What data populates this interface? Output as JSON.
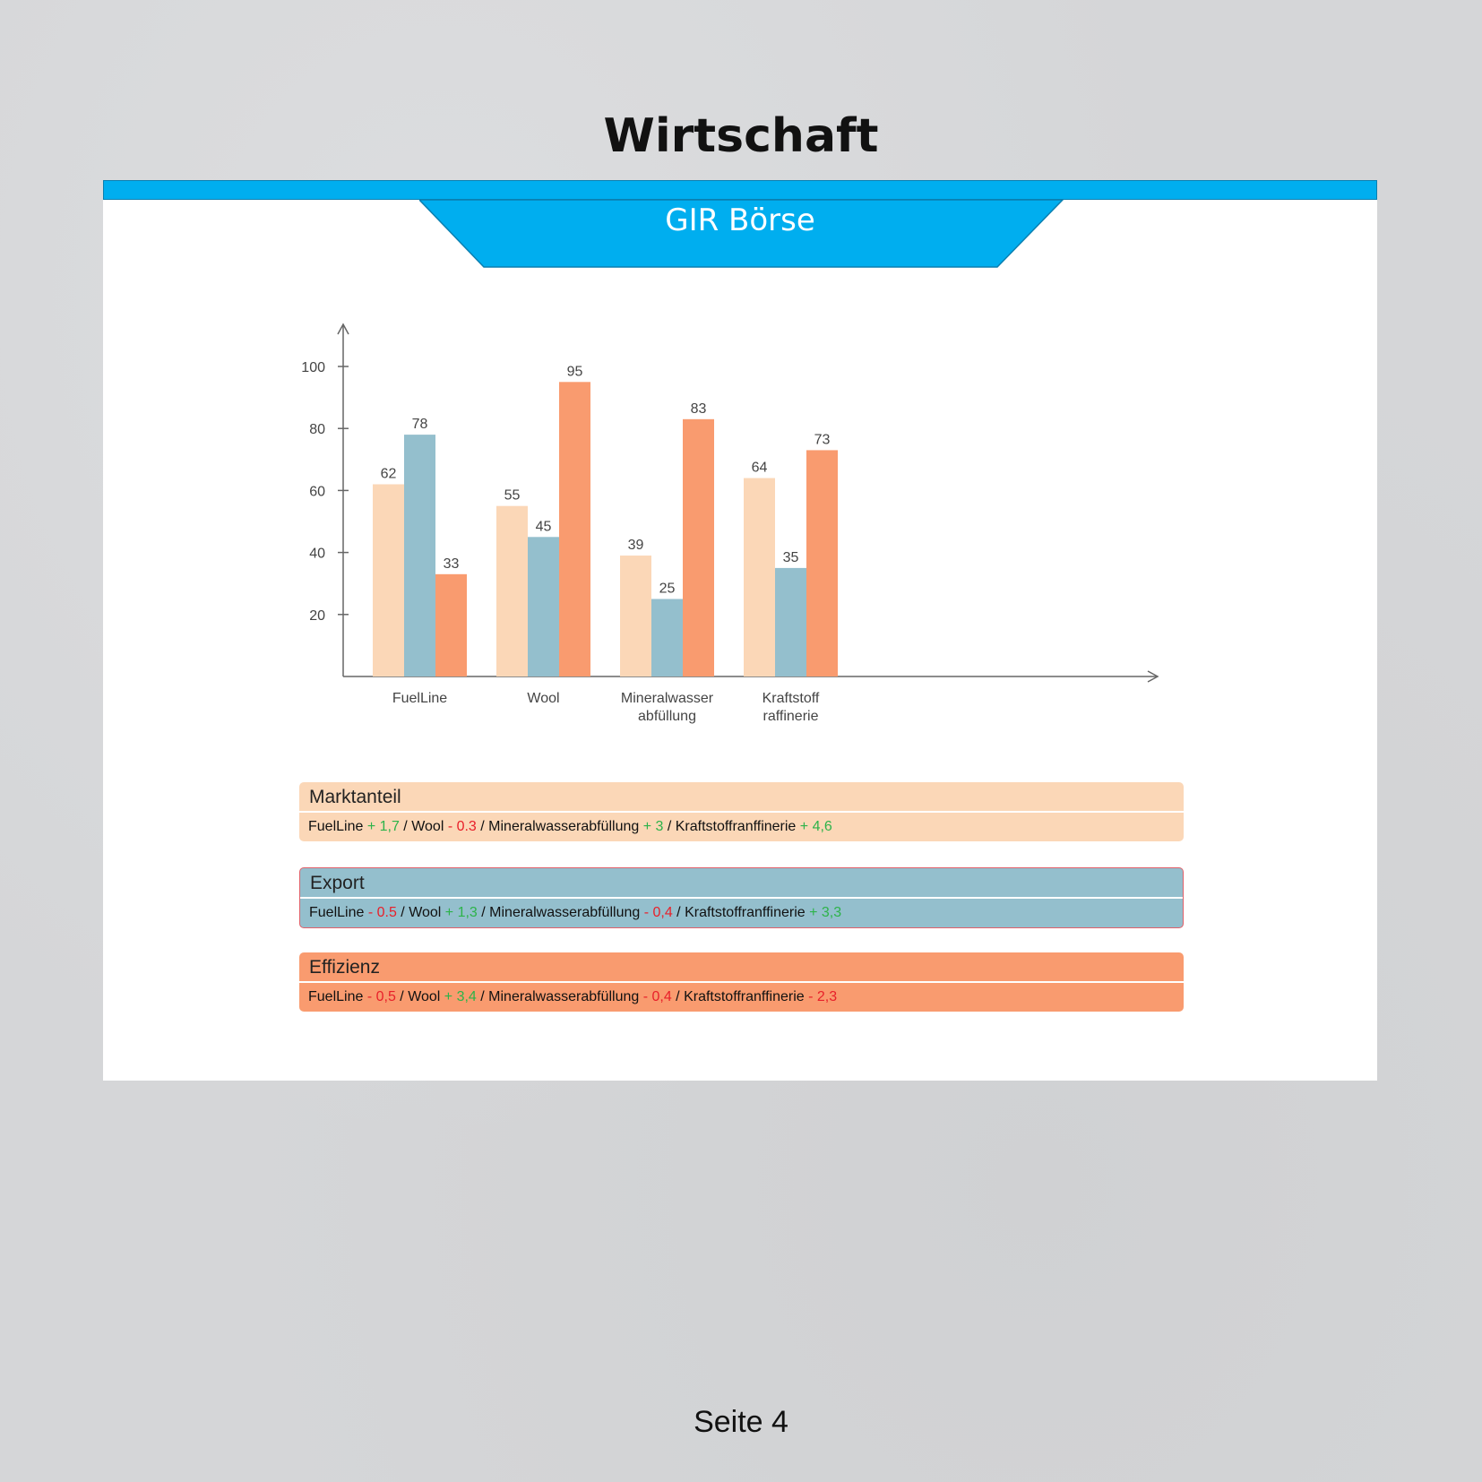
{
  "title": "Wirtschaft",
  "banner": "GIR Börse",
  "colors": {
    "accent": "#00aeef",
    "marktanteil": "#fbd7b7",
    "export": "#94bfcd",
    "effizienz": "#f99b6f",
    "positive": "#2db34a",
    "negative": "#e8202a"
  },
  "chart_data": {
    "type": "bar",
    "categories": [
      "FuelLine",
      "Wool",
      "Mineralwasser abfüllung",
      "Kraftstoff raffinerie"
    ],
    "category_lines": [
      [
        "FuelLine"
      ],
      [
        "Wool"
      ],
      [
        "Mineralwasser",
        "abfüllung"
      ],
      [
        "Kraftstoff",
        "raffinerie"
      ]
    ],
    "series": [
      {
        "name": "Marktanteil",
        "color": "#fbd7b7",
        "values": [
          62,
          55,
          39,
          64
        ]
      },
      {
        "name": "Export",
        "color": "#94bfcd",
        "values": [
          78,
          45,
          25,
          35
        ]
      },
      {
        "name": "Effizienz",
        "color": "#f99b6f",
        "values": [
          33,
          95,
          83,
          73
        ]
      }
    ],
    "yticks": [
      20,
      40,
      60,
      80,
      100
    ],
    "ylim": [
      0,
      110
    ],
    "grid": false
  },
  "boxes": [
    {
      "title": "Marktanteil",
      "color": "#fbd7b7",
      "items": [
        {
          "name": "FuelLine",
          "change": "+ 1,7",
          "dir": "pos"
        },
        {
          "name": "Wool",
          "change": "- 0.3",
          "dir": "neg"
        },
        {
          "name": "Mineralwasserabfüllung",
          "change": "+ 3",
          "dir": "pos"
        },
        {
          "name": "Kraftstoffranffinerie",
          "change": "+ 4,6",
          "dir": "pos"
        }
      ]
    },
    {
      "title": "Export",
      "color": "#94bfcd",
      "items": [
        {
          "name": "FuelLine",
          "change": "- 0.5",
          "dir": "neg"
        },
        {
          "name": "Wool",
          "change": "+ 1,3",
          "dir": "pos"
        },
        {
          "name": "Mineralwasserabfüllung",
          "change": "- 0,4",
          "dir": "neg"
        },
        {
          "name": "Kraftstoffranffinerie",
          "change": "+ 3,3",
          "dir": "pos"
        }
      ]
    },
    {
      "title": "Effizienz",
      "color": "#f99b6f",
      "items": [
        {
          "name": "FuelLine",
          "change": "- 0,5",
          "dir": "neg"
        },
        {
          "name": "Wool",
          "change": "+ 3,4",
          "dir": "pos"
        },
        {
          "name": "Mineralwasserabfüllung",
          "change": "- 0,4",
          "dir": "neg"
        },
        {
          "name": "Kraftstoffranffinerie",
          "change": "- 2,3",
          "dir": "neg"
        }
      ]
    }
  ],
  "footer": "Seite 4"
}
